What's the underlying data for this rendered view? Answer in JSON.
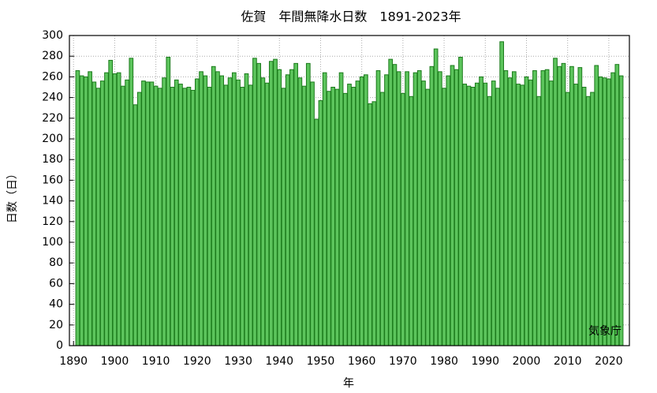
{
  "chart_data": {
    "type": "bar",
    "title": "佐賀　年間無降水日数　1891-2023年",
    "x_label": "年",
    "y_label": "日数（日）",
    "annotation": "気象庁",
    "color": "#5cc45c",
    "edge_color": "#1b7a1b",
    "grid": true,
    "x": [
      1891,
      1892,
      1893,
      1894,
      1895,
      1896,
      1897,
      1898,
      1899,
      1900,
      1901,
      1902,
      1903,
      1904,
      1905,
      1906,
      1907,
      1908,
      1909,
      1910,
      1911,
      1912,
      1913,
      1914,
      1915,
      1916,
      1917,
      1918,
      1919,
      1920,
      1921,
      1922,
      1923,
      1924,
      1925,
      1926,
      1927,
      1928,
      1929,
      1930,
      1931,
      1932,
      1933,
      1934,
      1935,
      1936,
      1937,
      1938,
      1939,
      1940,
      1941,
      1942,
      1943,
      1944,
      1945,
      1946,
      1947,
      1948,
      1949,
      1950,
      1951,
      1952,
      1953,
      1954,
      1955,
      1956,
      1957,
      1958,
      1959,
      1960,
      1961,
      1962,
      1963,
      1964,
      1965,
      1966,
      1967,
      1968,
      1969,
      1970,
      1971,
      1972,
      1973,
      1974,
      1975,
      1976,
      1977,
      1978,
      1979,
      1980,
      1981,
      1982,
      1983,
      1984,
      1985,
      1986,
      1987,
      1988,
      1989,
      1990,
      1991,
      1992,
      1993,
      1994,
      1995,
      1996,
      1997,
      1998,
      1999,
      2000,
      2001,
      2002,
      2003,
      2004,
      2005,
      2006,
      2007,
      2008,
      2009,
      2010,
      2011,
      2012,
      2013,
      2014,
      2015,
      2016,
      2017,
      2018,
      2019,
      2020,
      2021,
      2022,
      2023
    ],
    "values": [
      266,
      261,
      260,
      265,
      255,
      249,
      256,
      264,
      276,
      263,
      264,
      251,
      257,
      278,
      233,
      245,
      256,
      255,
      255,
      251,
      249,
      259,
      279,
      250,
      257,
      253,
      249,
      250,
      247,
      258,
      265,
      261,
      250,
      270,
      265,
      261,
      252,
      259,
      264,
      257,
      250,
      263,
      252,
      278,
      273,
      259,
      254,
      275,
      277,
      267,
      249,
      262,
      267,
      273,
      259,
      251,
      273,
      255,
      219,
      237,
      264,
      246,
      250,
      248,
      264,
      244,
      253,
      250,
      256,
      260,
      262,
      234,
      236,
      266,
      245,
      262,
      277,
      272,
      265,
      244,
      265,
      241,
      264,
      266,
      256,
      248,
      270,
      287,
      265,
      249,
      261,
      271,
      267,
      279,
      253,
      251,
      250,
      254,
      260,
      254,
      241,
      256,
      249,
      294,
      266,
      259,
      265,
      253,
      252,
      260,
      257,
      266,
      241,
      266,
      267,
      256,
      278,
      270,
      273,
      245,
      270,
      253,
      269,
      250,
      241,
      245,
      271,
      260,
      259,
      258,
      264,
      272,
      261
    ],
    "xlim": [
      1889,
      2025
    ],
    "xticks": [
      1890,
      1900,
      1910,
      1920,
      1930,
      1940,
      1950,
      1960,
      1970,
      1980,
      1990,
      2000,
      2010,
      2020
    ],
    "ylim": [
      0,
      300
    ],
    "yticks": [
      0,
      20,
      40,
      60,
      80,
      100,
      120,
      140,
      160,
      180,
      200,
      220,
      240,
      260,
      280,
      300
    ]
  }
}
